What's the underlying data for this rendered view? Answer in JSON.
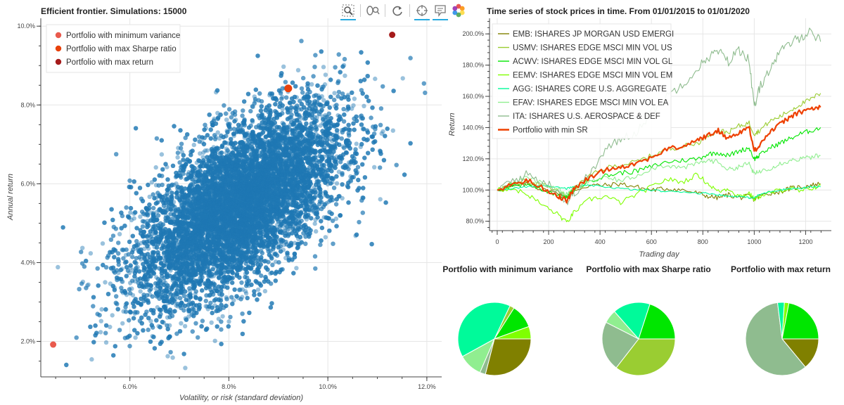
{
  "chart_data": [
    {
      "type": "scatter",
      "title": "Efficient frontier. Simulations: 15000",
      "xlabel": "Volatility, or risk (standard deviation)",
      "ylabel": "Annual return",
      "xlim": [
        4.2,
        12.3
      ],
      "ylim": [
        1.1,
        10.2
      ],
      "x_ticks": [
        "6.0%",
        "8.0%",
        "10.0%",
        "12.0%"
      ],
      "x_tick_values": [
        6,
        8,
        10,
        12
      ],
      "y_ticks": [
        "2.0%",
        "4.0%",
        "6.0%",
        "8.0%",
        "10.0%"
      ],
      "y_tick_values": [
        2,
        4,
        6,
        8,
        10
      ],
      "grid": true,
      "legend_position": "top-left",
      "point_color": "#1f77b4",
      "cloud": {
        "count": 15000,
        "center": [
          8.2,
          5.45
        ],
        "sd": [
          1.05,
          1.25
        ],
        "correlation": 0.62
      },
      "highlights": [
        {
          "name": "Portfolio with minimum variance",
          "x": 4.45,
          "y": 1.92,
          "color": "#e95a4d"
        },
        {
          "name": "Portfolio with max Sharpe ratio",
          "x": 9.2,
          "y": 8.42,
          "color": "#e8410b"
        },
        {
          "name": "Portfolio with max return",
          "x": 11.3,
          "y": 9.78,
          "color": "#a51b1b"
        }
      ]
    },
    {
      "type": "line",
      "title": "Time series of stock prices in time. From 01/01/2015 to 01/01/2020",
      "xlabel": "Trading day",
      "ylabel": "Return",
      "xlim": [
        -30,
        1300
      ],
      "ylim": [
        74,
        210
      ],
      "x_ticks": [
        "0",
        "200",
        "400",
        "600",
        "800",
        "1000",
        "1200"
      ],
      "x_tick_values": [
        0,
        200,
        400,
        600,
        800,
        1000,
        1200
      ],
      "y_ticks": [
        "80.0%",
        "100.0%",
        "120.0%",
        "140.0%",
        "160.0%",
        "180.0%",
        "200.0%"
      ],
      "y_tick_values": [
        80,
        100,
        120,
        140,
        160,
        180,
        200
      ],
      "grid": true,
      "legend_position": "top-left",
      "x": [
        0,
        60,
        120,
        180,
        240,
        270,
        300,
        360,
        420,
        480,
        540,
        600,
        660,
        720,
        780,
        820,
        860,
        900,
        940,
        980,
        1000,
        1020,
        1060,
        1100,
        1140,
        1180,
        1220,
        1258
      ],
      "series": [
        {
          "name": "EMB: ISHARES JP MORGAN USD EMERGI",
          "color": "#808000",
          "width": 1.1,
          "values": [
            100,
            102,
            104,
            100,
            98,
            96,
            100,
            103,
            103,
            104,
            102,
            100,
            101,
            100,
            98,
            96,
            95,
            97,
            95,
            96,
            94,
            96,
            98,
            99,
            101,
            102,
            103,
            104
          ]
        },
        {
          "name": "USMV: ISHARES EDGE MSCI MIN VOL US",
          "color": "#9acd32",
          "width": 1.1,
          "values": [
            100,
            104,
            106,
            103,
            99,
            96,
            101,
            109,
            114,
            116,
            118,
            122,
            126,
            128,
            130,
            135,
            138,
            137,
            141,
            143,
            136,
            138,
            144,
            147,
            151,
            155,
            158,
            162
          ]
        },
        {
          "name": "ACWV: ISHARES EDGE MSCI MIN VOL GL",
          "color": "#00e600",
          "width": 1.1,
          "values": [
            100,
            103,
            104,
            100,
            97,
            95,
            100,
            106,
            109,
            111,
            112,
            115,
            118,
            119,
            120,
            123,
            124,
            122,
            125,
            127,
            120,
            122,
            127,
            130,
            133,
            136,
            138,
            140
          ]
        },
        {
          "name": "EEMV: ISHARES EDGE MSCI MIN VOL EM",
          "color": "#7fff00",
          "width": 1.1,
          "values": [
            100,
            101,
            97,
            90,
            84,
            79,
            86,
            94,
            96,
            92,
            97,
            102,
            107,
            105,
            110,
            104,
            99,
            101,
            96,
            98,
            94,
            96,
            98,
            100,
            101,
            99,
            101,
            103
          ]
        },
        {
          "name": "AGG: ISHARES CORE U.S. AGGREGATE",
          "color": "#00fa9a",
          "width": 1.1,
          "values": [
            100,
            101,
            102,
            103,
            102,
            101,
            102,
            103,
            102,
            101,
            100,
            100,
            99,
            99,
            98,
            98,
            97,
            96,
            96,
            95,
            95,
            97,
            99,
            100,
            101,
            101,
            102,
            102
          ]
        },
        {
          "name": "EFAV: ISHARES EDGE MSCI MIN VOL EA",
          "color": "#90ee90",
          "width": 1.1,
          "values": [
            100,
            105,
            108,
            104,
            100,
            97,
            101,
            106,
            108,
            106,
            109,
            114,
            116,
            114,
            117,
            119,
            118,
            113,
            115,
            117,
            110,
            112,
            114,
            117,
            119,
            120,
            121,
            122
          ]
        },
        {
          "name": "ITA: ISHARES U.S. AEROSPACE & DEF",
          "color": "#8fbc8f",
          "width": 1.1,
          "values": [
            100,
            106,
            110,
            105,
            100,
            92,
            98,
            110,
            125,
            133,
            137,
            150,
            160,
            168,
            178,
            185,
            189,
            182,
            190,
            184,
            152,
            165,
            178,
            188,
            194,
            198,
            202,
            195
          ]
        },
        {
          "name": "Portfolio with min SR",
          "color": "#ee4000",
          "width": 2.2,
          "values": [
            100,
            104,
            106,
            101,
            96,
            93,
            101,
            108,
            113,
            115,
            117,
            121,
            126,
            128,
            132,
            135,
            138,
            133,
            137,
            140,
            125,
            129,
            137,
            142,
            147,
            150,
            152,
            153
          ]
        }
      ]
    },
    {
      "type": "pie",
      "title": "Portfolio with minimum variance",
      "slices": [
        {
          "label": "EMB: ISHARES JP MORGAN USD EMERGI",
          "value": 29,
          "color": "#808000"
        },
        {
          "label": "ITA: ISHARES U.S. AEROSPACE & DEF",
          "value": 2.5,
          "color": "#8fbc8f"
        },
        {
          "label": "EFAV: ISHARES EDGE MSCI MIN VOL EA",
          "value": 10.5,
          "color": "#90ee90"
        },
        {
          "label": "AGG: ISHARES CORE U.S. AGGREGATE",
          "value": 40,
          "color": "#00fa9a"
        },
        {
          "label": "USMV: ISHARES EDGE MSCI MIN VOL US",
          "value": 2,
          "color": "#9acd32"
        },
        {
          "label": "ACWV: ISHARES EDGE MSCI MIN VOL GL",
          "value": 10.5,
          "color": "#00e600"
        },
        {
          "label": "EEMV: ISHARES EDGE MSCI MIN VOL EM",
          "value": 5.5,
          "color": "#7fff00"
        }
      ]
    },
    {
      "type": "pie",
      "title": "Portfolio with max Sharpe ratio",
      "slices": [
        {
          "label": "USMV: ISHARES EDGE MSCI MIN VOL US",
          "value": 35.5,
          "color": "#9acd32"
        },
        {
          "label": "ITA: ISHARES U.S. AEROSPACE & DEF",
          "value": 22,
          "color": "#8fbc8f"
        },
        {
          "label": "EFAV: ISHARES EDGE MSCI MIN VOL EA",
          "value": 6,
          "color": "#90ee90"
        },
        {
          "label": "AGG: ISHARES CORE U.S. AGGREGATE",
          "value": 16.5,
          "color": "#00fa9a"
        },
        {
          "label": "ACWV: ISHARES EDGE MSCI MIN VOL GL",
          "value": 20,
          "color": "#00e600"
        }
      ]
    },
    {
      "type": "pie",
      "title": "Portfolio with max return",
      "slices": [
        {
          "label": "EMB: ISHARES JP MORGAN USD EMERGI",
          "value": 14,
          "color": "#808000"
        },
        {
          "label": "ITA: ISHARES U.S. AEROSPACE & DEF",
          "value": 59,
          "color": "#8fbc8f"
        },
        {
          "label": "AGG: ISHARES CORE U.S. AGGREGATE",
          "value": 3,
          "color": "#00fa9a"
        },
        {
          "label": "EEMV: ISHARES EDGE MSCI MIN VOL EM",
          "value": 2,
          "color": "#7fff00"
        },
        {
          "label": "ACWV: ISHARES EDGE MSCI MIN VOL GL",
          "value": 22,
          "color": "#00e600"
        }
      ]
    }
  ],
  "toolbar": {
    "tools": [
      {
        "name": "box-zoom-tool",
        "icon": "magnifier-box-icon",
        "active": true
      },
      {
        "name": "wheel-zoom-tool",
        "icon": "wheel-zoom-icon",
        "active": false
      },
      {
        "name": "reset-tool",
        "icon": "reset-icon",
        "active": false
      },
      {
        "name": "crosshair-tool",
        "icon": "crosshair-icon",
        "active": true
      },
      {
        "name": "hover-tool",
        "icon": "hover-icon",
        "active": true
      },
      {
        "name": "bokeh-logo",
        "icon": "bokeh-logo-icon",
        "active": false
      }
    ]
  }
}
